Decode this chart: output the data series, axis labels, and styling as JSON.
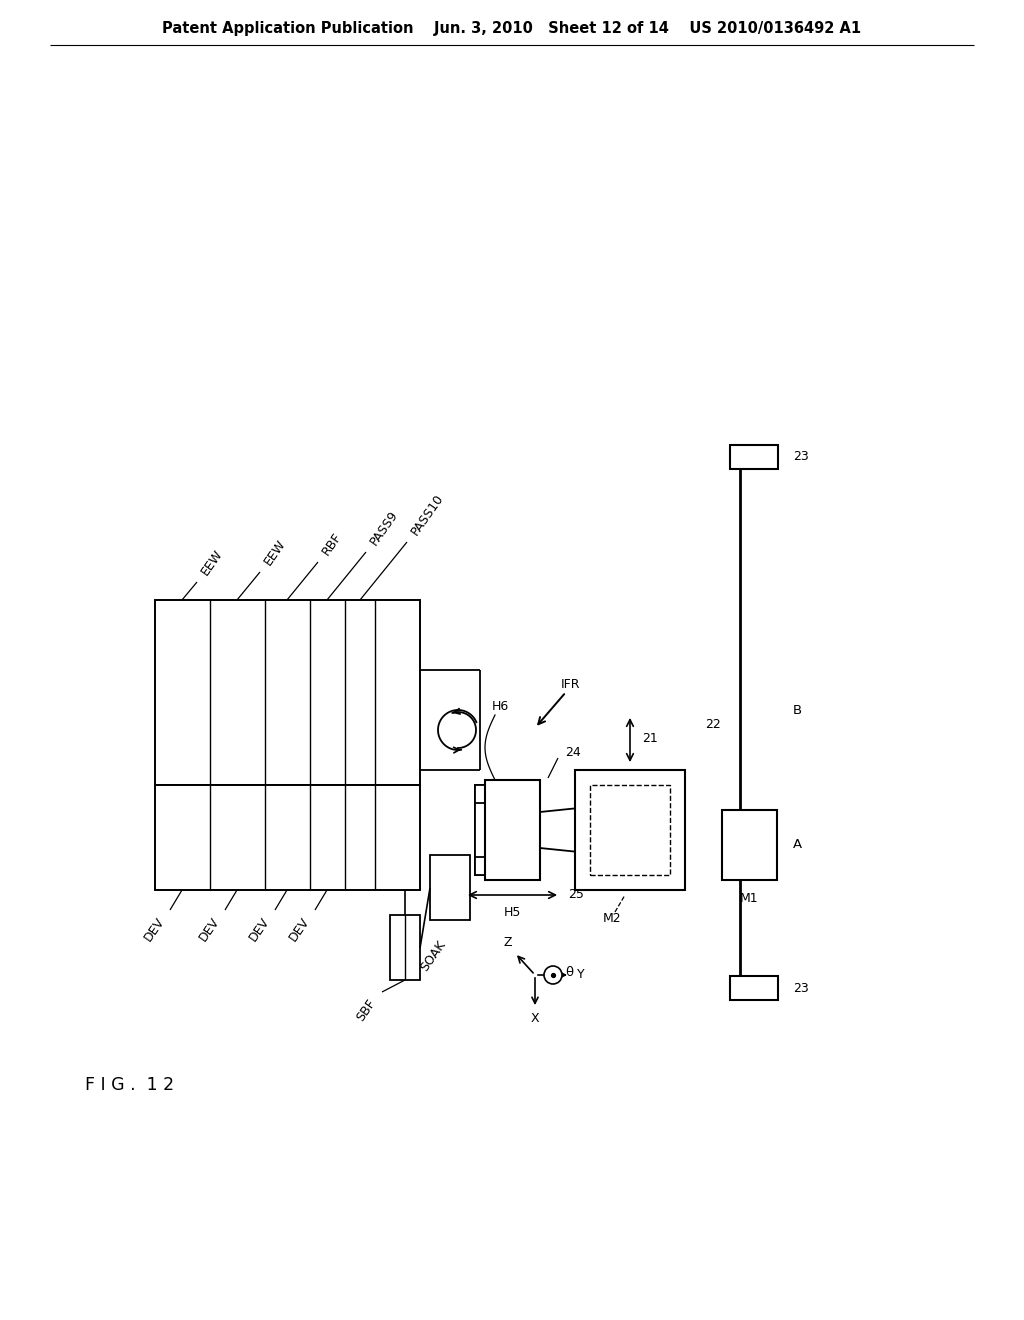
{
  "bg_color": "#ffffff",
  "header_text": "Patent Application Publication    Jun. 3, 2010   Sheet 12 of 14    US 2010/0136492 A1",
  "fig_label": "FIG. 12",
  "top_labels": [
    "EEW",
    "EEW",
    "RBF",
    "PASS9",
    "PASS10"
  ],
  "bottom_labels": [
    "DEV",
    "DEV",
    "DEV",
    "DEV"
  ],
  "theta_label": "θ"
}
